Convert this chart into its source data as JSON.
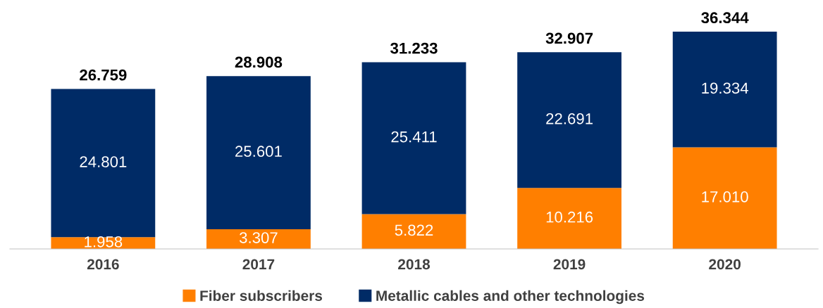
{
  "chart_data": {
    "type": "bar",
    "stacked": true,
    "categories": [
      "2016",
      "2017",
      "2018",
      "2019",
      "2020"
    ],
    "series": [
      {
        "name": "Fiber subscribers",
        "color": "#ff7f00",
        "values": [
          1.958,
          3.307,
          5.822,
          10.216,
          17.01
        ],
        "value_labels": [
          "1.958",
          "3.307",
          "5.822",
          "10.216",
          "17.010"
        ]
      },
      {
        "name": "Metallic cables and other technologies",
        "color": "#002b66",
        "values": [
          24.801,
          25.601,
          25.411,
          22.691,
          19.334
        ],
        "value_labels": [
          "24.801",
          "25.601",
          "25.411",
          "22.691",
          "19.334"
        ]
      }
    ],
    "totals": [
      "26.759",
      "28.908",
      "31.233",
      "32.907",
      "36.344"
    ],
    "tick_labels": "x",
    "grid": false,
    "legend": "bottom"
  }
}
